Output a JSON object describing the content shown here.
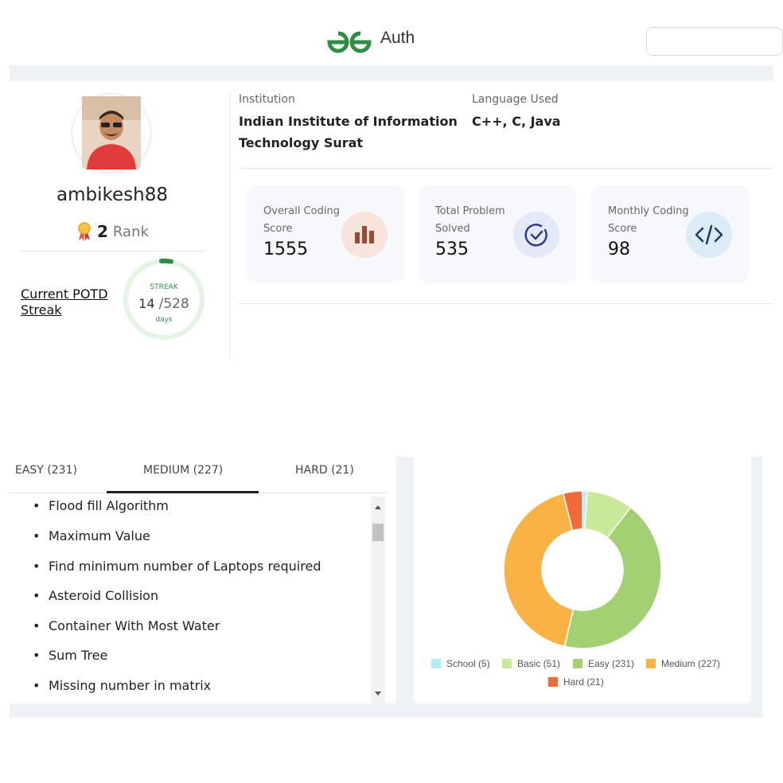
{
  "header": {
    "brand": "Auth",
    "search_placeholder": ""
  },
  "profile": {
    "username": "ambikesh88",
    "rank_value": "2",
    "rank_label": "Rank",
    "potd_label": "Current POTD Streak",
    "streak": {
      "label": "STREAK",
      "current": "14",
      "total": "/528",
      "unit": "days",
      "progress": 0.0265
    }
  },
  "info": {
    "institution_label": "Institution",
    "institution_line1": "Indian Institute of Information",
    "institution_line2": "Technology Surat",
    "language_label": "Language Used",
    "languages": "C++, C, Java"
  },
  "stats": [
    {
      "title1": "Overall Coding",
      "title2": "Score",
      "value": "1555",
      "icon": "bar-chart-icon",
      "icon_bg": "#f7e4dc",
      "icon_color": "#9a4a32"
    },
    {
      "title1": "Total Problem",
      "title2": "Solved",
      "value": "535",
      "icon": "check-circle-icon",
      "icon_bg": "#e4e9f7",
      "icon_color": "#2c3d8f"
    },
    {
      "title1": "Monthly Coding",
      "title2": "Score",
      "value": "98",
      "icon": "code-icon",
      "icon_bg": "#dcecf7",
      "icon_color": "#1d3a6b"
    }
  ],
  "tabs": [
    {
      "label": "EASY (231)",
      "active": false
    },
    {
      "label": "MEDIUM (227)",
      "active": true
    },
    {
      "label": "HARD (21)",
      "active": false
    }
  ],
  "problems": [
    "Flood fill Algorithm",
    "Maximum Value",
    "Find minimum number of Laptops required",
    "Asteroid Collision",
    "Container With Most Water",
    "Sum Tree",
    "Missing number in matrix"
  ],
  "chart_data": {
    "type": "pie",
    "donut": true,
    "categories": [
      "School",
      "Basic",
      "Easy",
      "Medium",
      "Hard"
    ],
    "values": [
      5,
      51,
      231,
      227,
      21
    ],
    "legend": [
      "School (5)",
      "Basic (51)",
      "Easy (231)",
      "Medium (227)",
      "Hard (21)"
    ],
    "colors": [
      "#b5edf7",
      "#c9e89a",
      "#a3d072",
      "#fbb244",
      "#f4693a"
    ],
    "legend_position": "bottom"
  }
}
